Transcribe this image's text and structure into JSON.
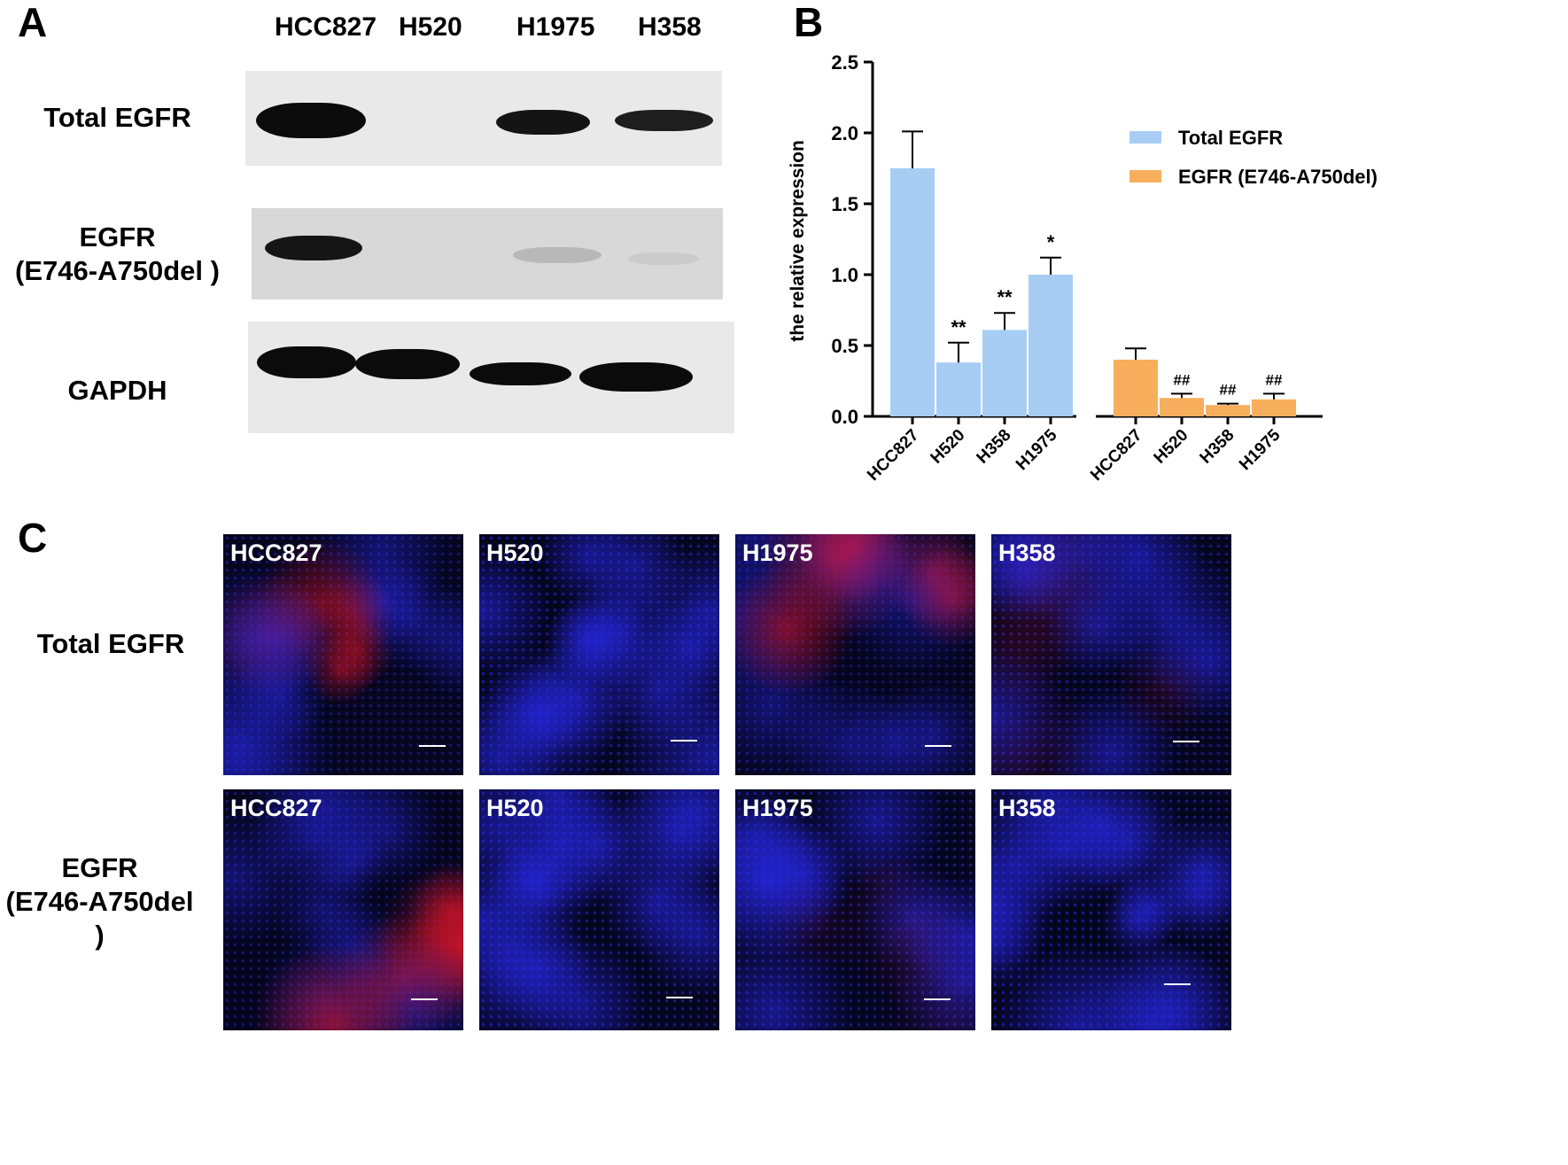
{
  "panels": {
    "a": "A",
    "b": "B",
    "c": "C"
  },
  "panel_a": {
    "lanes": [
      "HCC827",
      "H520",
      "H1975",
      "H358"
    ],
    "rows": [
      {
        "label_line1": "Total EGFR",
        "label_line2": ""
      },
      {
        "label_line1": "EGFR",
        "label_line2": "(E746-A750del )"
      },
      {
        "label_line1": "GAPDH",
        "label_line2": ""
      }
    ]
  },
  "chart_data": {
    "type": "bar",
    "ylabel": "the relative expression",
    "ylim": [
      0,
      2.5
    ],
    "yticks": [
      "0.0",
      "0.5",
      "1.0",
      "1.5",
      "2.0",
      "2.5"
    ],
    "legend_position": "top-right",
    "colors": {
      "Total EGFR": "#a7cdf3",
      "EGFR (E746-A750del)": "#f7ae5d"
    },
    "groups": [
      {
        "series": "Total EGFR",
        "categories": [
          "HCC827",
          "H520",
          "H358",
          "H1975"
        ],
        "values": [
          1.75,
          0.38,
          0.61,
          1.0
        ],
        "errors": [
          0.26,
          0.14,
          0.12,
          0.12
        ],
        "annotations": [
          "",
          "**",
          "**",
          "*"
        ]
      },
      {
        "series": "EGFR (E746-A750del)",
        "categories": [
          "HCC827",
          "H520",
          "H358",
          "H1975"
        ],
        "values": [
          0.4,
          0.13,
          0.08,
          0.12
        ],
        "errors": [
          0.08,
          0.03,
          0.01,
          0.04
        ],
        "annotations": [
          "",
          "##",
          "##",
          "##"
        ]
      }
    ]
  },
  "panel_c": {
    "rows": [
      {
        "label_line1": "Total EGFR",
        "label_line2": "",
        "tiles": [
          {
            "label": "HCC827",
            "red_level": 0.6
          },
          {
            "label": "H520",
            "red_level": 0.0
          },
          {
            "label": "H1975",
            "red_level": 0.7
          },
          {
            "label": "H358",
            "red_level": 0.15
          }
        ]
      },
      {
        "label_line1": "EGFR",
        "label_line2": "(E746-A750del )",
        "tiles": [
          {
            "label": "HCC827",
            "red_level": 0.75
          },
          {
            "label": "H520",
            "red_level": 0.0
          },
          {
            "label": "H1975",
            "red_level": 0.1
          },
          {
            "label": "H358",
            "red_level": 0.0
          }
        ]
      }
    ]
  }
}
